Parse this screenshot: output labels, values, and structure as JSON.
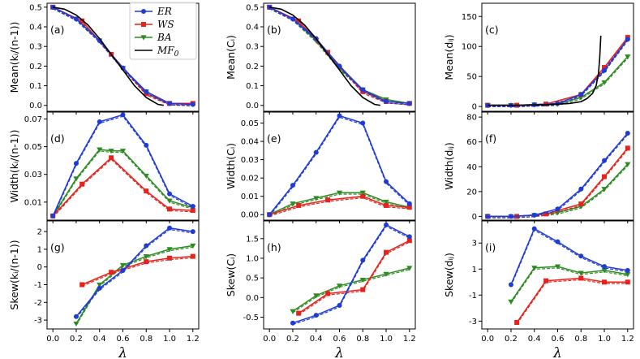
{
  "x_label": "λ",
  "x_ticks": [
    "0.0",
    "0.2",
    "0.4",
    "0.6",
    "0.8",
    "1.0",
    "1.2"
  ],
  "legend": [
    {
      "name": "ER",
      "color": "#1f3bd6",
      "marker": "circle"
    },
    {
      "name": "WS",
      "color": "#e3231c",
      "marker": "square"
    },
    {
      "name": "BA",
      "color": "#2e8b22",
      "marker": "triangle-down"
    },
    {
      "name": "MF0",
      "color": "#000000",
      "marker": "none"
    }
  ],
  "chart_data": [
    {
      "panel": "(a)",
      "type": "line",
      "ylabel": "Mean(kᵢ/(n-1))",
      "xlim": [
        -0.05,
        1.25
      ],
      "ylim": [
        -0.03,
        0.52
      ],
      "yticks": [
        0.0,
        0.1,
        0.2,
        0.3,
        0.4,
        0.5
      ],
      "ytick_labels": [
        "0.0",
        "0.1",
        "0.2",
        "0.3",
        "0.4",
        "0.5"
      ],
      "legend_placement": "top-right",
      "series": [
        {
          "name": "ER",
          "x": [
            0,
            0.2,
            0.4,
            0.6,
            0.8,
            1.0,
            1.2
          ],
          "y": [
            0.5,
            0.44,
            0.33,
            0.19,
            0.07,
            0.01,
            0.005
          ]
        },
        {
          "name": "WS",
          "x": [
            0,
            0.25,
            0.5,
            0.8,
            1.0,
            1.2
          ],
          "y": [
            0.5,
            0.43,
            0.26,
            0.06,
            0.01,
            0.01
          ]
        },
        {
          "name": "BA",
          "x": [
            0,
            0.2,
            0.4,
            0.6,
            0.8,
            1.0,
            1.2
          ],
          "y": [
            0.5,
            0.44,
            0.33,
            0.19,
            0.07,
            0.01,
            0.005
          ]
        },
        {
          "name": "MF0",
          "x": [
            0,
            0.1,
            0.2,
            0.3,
            0.4,
            0.5,
            0.6,
            0.7,
            0.8,
            0.9,
            0.95
          ],
          "y": [
            0.5,
            0.49,
            0.46,
            0.41,
            0.34,
            0.26,
            0.18,
            0.1,
            0.04,
            0.005,
            0.0
          ]
        }
      ]
    },
    {
      "panel": "(b)",
      "type": "line",
      "ylabel": "Mean(Cᵢ)",
      "xlim": [
        -0.05,
        1.25
      ],
      "ylim": [
        -0.03,
        0.52
      ],
      "yticks": [
        0.0,
        0.1,
        0.2,
        0.3,
        0.4,
        0.5
      ],
      "ytick_labels": [
        "0.0",
        "0.1",
        "0.2",
        "0.3",
        "0.4",
        "0.5"
      ],
      "series": [
        {
          "name": "ER",
          "x": [
            0,
            0.2,
            0.4,
            0.6,
            0.8,
            1.0,
            1.2
          ],
          "y": [
            0.5,
            0.44,
            0.34,
            0.2,
            0.08,
            0.02,
            0.01
          ]
        },
        {
          "name": "WS",
          "x": [
            0,
            0.25,
            0.5,
            0.8,
            1.0,
            1.2
          ],
          "y": [
            0.5,
            0.43,
            0.27,
            0.07,
            0.02,
            0.01
          ]
        },
        {
          "name": "BA",
          "x": [
            0,
            0.2,
            0.4,
            0.6,
            0.8,
            1.0,
            1.2
          ],
          "y": [
            0.5,
            0.44,
            0.33,
            0.19,
            0.08,
            0.03,
            0.01
          ]
        },
        {
          "name": "MF0",
          "x": [
            0,
            0.1,
            0.2,
            0.3,
            0.4,
            0.5,
            0.6,
            0.7,
            0.8,
            0.9,
            0.95
          ],
          "y": [
            0.5,
            0.49,
            0.46,
            0.41,
            0.34,
            0.26,
            0.18,
            0.1,
            0.04,
            0.005,
            0.0
          ]
        }
      ]
    },
    {
      "panel": "(c)",
      "type": "line",
      "ylabel": "Mean(dᵢⱼ)",
      "xlim": [
        -0.05,
        1.25
      ],
      "ylim": [
        -8,
        172
      ],
      "yticks": [
        0,
        50,
        100,
        150
      ],
      "ytick_labels": [
        "0",
        "50",
        "100",
        "150"
      ],
      "series": [
        {
          "name": "ER",
          "x": [
            0,
            0.2,
            0.4,
            0.6,
            0.8,
            1.0,
            1.2
          ],
          "y": [
            2,
            2,
            3,
            5,
            20,
            60,
            112
          ]
        },
        {
          "name": "WS",
          "x": [
            0,
            0.25,
            0.5,
            0.8,
            1.0,
            1.2
          ],
          "y": [
            2,
            2,
            4,
            20,
            65,
            115
          ]
        },
        {
          "name": "BA",
          "x": [
            0,
            0.2,
            0.4,
            0.6,
            0.8,
            1.0,
            1.2
          ],
          "y": [
            2,
            2,
            3,
            4,
            15,
            40,
            83
          ]
        },
        {
          "name": "MF0",
          "x": [
            0,
            0.3,
            0.5,
            0.7,
            0.8,
            0.85,
            0.9,
            0.93,
            0.95,
            0.96,
            0.97
          ],
          "y": [
            2,
            2,
            3,
            5,
            8,
            13,
            22,
            35,
            55,
            80,
            118
          ]
        }
      ]
    },
    {
      "panel": "(d)",
      "type": "line",
      "ylabel": "Width(kᵢ/(n-1))",
      "xlim": [
        -0.05,
        1.25
      ],
      "ylim": [
        -0.003,
        0.075
      ],
      "yticks": [
        0.01,
        0.03,
        0.05,
        0.07
      ],
      "ytick_labels": [
        "0.01",
        "0.03",
        "0.05",
        "0.07"
      ],
      "series": [
        {
          "name": "ER",
          "x": [
            0,
            0.2,
            0.4,
            0.6,
            0.8,
            1.0,
            1.2
          ],
          "y": [
            0.0,
            0.038,
            0.068,
            0.073,
            0.051,
            0.016,
            0.007
          ]
        },
        {
          "name": "WS",
          "x": [
            0,
            0.25,
            0.5,
            0.8,
            1.0,
            1.2
          ],
          "y": [
            0.0,
            0.023,
            0.042,
            0.018,
            0.005,
            0.004
          ]
        },
        {
          "name": "BA",
          "x": [
            0,
            0.2,
            0.4,
            0.5,
            0.6,
            0.8,
            1.0,
            1.2
          ],
          "y": [
            0.0,
            0.027,
            0.048,
            0.047,
            0.047,
            0.029,
            0.011,
            0.006
          ]
        }
      ]
    },
    {
      "panel": "(e)",
      "type": "line",
      "ylabel": "Width(Cᵢ)",
      "xlim": [
        -0.05,
        1.25
      ],
      "ylim": [
        -0.003,
        0.056
      ],
      "yticks": [
        0.0,
        0.01,
        0.02,
        0.03,
        0.04,
        0.05
      ],
      "ytick_labels": [
        "0.00",
        "0.01",
        "0.02",
        "0.03",
        "0.04",
        "0.05"
      ],
      "series": [
        {
          "name": "ER",
          "x": [
            0,
            0.2,
            0.4,
            0.6,
            0.8,
            1.0,
            1.2
          ],
          "y": [
            0.0,
            0.016,
            0.034,
            0.054,
            0.05,
            0.018,
            0.006
          ]
        },
        {
          "name": "WS",
          "x": [
            0,
            0.25,
            0.5,
            0.8,
            1.0,
            1.2
          ],
          "y": [
            0.0,
            0.005,
            0.008,
            0.01,
            0.005,
            0.004
          ]
        },
        {
          "name": "BA",
          "x": [
            0,
            0.2,
            0.4,
            0.6,
            0.8,
            1.0,
            1.2
          ],
          "y": [
            0.0,
            0.006,
            0.009,
            0.012,
            0.012,
            0.007,
            0.004
          ]
        }
      ]
    },
    {
      "panel": "(f)",
      "type": "line",
      "ylabel": "Width(dᵢⱼ)",
      "xlim": [
        -0.05,
        1.25
      ],
      "ylim": [
        -3,
        84
      ],
      "yticks": [
        0,
        20,
        40,
        60,
        80
      ],
      "ytick_labels": [
        "0",
        "20",
        "40",
        "60",
        "80"
      ],
      "series": [
        {
          "name": "ER",
          "x": [
            0,
            0.2,
            0.4,
            0.6,
            0.8,
            1.0,
            1.2
          ],
          "y": [
            0,
            0,
            1,
            6,
            22,
            45,
            67
          ]
        },
        {
          "name": "WS",
          "x": [
            0,
            0.25,
            0.5,
            0.8,
            1.0,
            1.2
          ],
          "y": [
            0,
            0,
            2,
            10,
            32,
            55
          ]
        },
        {
          "name": "BA",
          "x": [
            0,
            0.2,
            0.4,
            0.6,
            0.8,
            1.0,
            1.2
          ],
          "y": [
            0,
            0,
            1,
            3,
            8,
            22,
            42
          ]
        }
      ]
    },
    {
      "panel": "(g)",
      "type": "line",
      "ylabel": "Skew(kᵢ/(n-1))",
      "xlim": [
        -0.05,
        1.25
      ],
      "ylim": [
        -3.5,
        2.6
      ],
      "yticks": [
        -3,
        -2,
        -1,
        0,
        1,
        2
      ],
      "ytick_labels": [
        "-3",
        "-2",
        "-1",
        "0",
        "1",
        "2"
      ],
      "series": [
        {
          "name": "ER",
          "x": [
            0.2,
            0.4,
            0.6,
            0.8,
            1.0,
            1.2
          ],
          "y": [
            -2.8,
            -1.2,
            -0.2,
            1.2,
            2.2,
            2.0
          ]
        },
        {
          "name": "WS",
          "x": [
            0.25,
            0.5,
            0.8,
            1.0,
            1.2
          ],
          "y": [
            -1.0,
            -0.3,
            0.3,
            0.5,
            0.6
          ]
        },
        {
          "name": "BA",
          "x": [
            0.2,
            0.4,
            0.6,
            0.8,
            1.0,
            1.2
          ],
          "y": [
            -3.2,
            -1.0,
            0.1,
            0.6,
            1.0,
            1.2
          ]
        }
      ]
    },
    {
      "panel": "(h)",
      "type": "line",
      "ylabel": "Skew(Cᵢ)",
      "xlim": [
        -0.05,
        1.25
      ],
      "ylim": [
        -0.8,
        1.95
      ],
      "yticks": [
        -0.5,
        0.0,
        0.5,
        1.0,
        1.5
      ],
      "ytick_labels": [
        "-0.5",
        "0.0",
        "0.5",
        "1.0",
        "1.5"
      ],
      "series": [
        {
          "name": "ER",
          "x": [
            0.2,
            0.4,
            0.6,
            0.8,
            1.0,
            1.2
          ],
          "y": [
            -0.65,
            -0.45,
            -0.2,
            0.95,
            1.85,
            1.55
          ]
        },
        {
          "name": "WS",
          "x": [
            0.25,
            0.5,
            0.8,
            1.0,
            1.2
          ],
          "y": [
            -0.4,
            0.1,
            0.2,
            1.15,
            1.45
          ]
        },
        {
          "name": "BA",
          "x": [
            0.2,
            0.4,
            0.6,
            0.8,
            1.0,
            1.2
          ],
          "y": [
            -0.35,
            0.05,
            0.3,
            0.45,
            0.6,
            0.75
          ]
        }
      ]
    },
    {
      "panel": "(i)",
      "type": "line",
      "ylabel": "Skew(dᵢⱼ)",
      "xlim": [
        -0.05,
        1.25
      ],
      "ylim": [
        -3.6,
        4.7
      ],
      "yticks": [
        -3,
        -1,
        1,
        3
      ],
      "ytick_labels": [
        "-3",
        "-1",
        "1",
        "3"
      ],
      "series": [
        {
          "name": "ER",
          "x": [
            0.2,
            0.4,
            0.6,
            0.8,
            1.0,
            1.2
          ],
          "y": [
            -0.2,
            4.1,
            3.1,
            2.0,
            1.2,
            0.9
          ]
        },
        {
          "name": "WS",
          "x": [
            0.25,
            0.5,
            0.8,
            1.0,
            1.2
          ],
          "y": [
            -3.1,
            0.1,
            0.3,
            0.0,
            0.0
          ]
        },
        {
          "name": "BA",
          "x": [
            0.2,
            0.4,
            0.6,
            0.8,
            1.0,
            1.2
          ],
          "y": [
            -1.5,
            1.1,
            1.2,
            0.7,
            0.9,
            0.6
          ]
        }
      ]
    }
  ]
}
